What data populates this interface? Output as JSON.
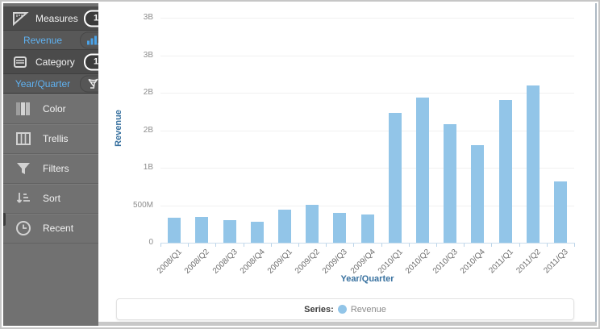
{
  "sidebar": {
    "measures": {
      "label": "Measures",
      "badge": "1",
      "icon": "set-square-ruler-icon"
    },
    "revenue_field": {
      "label": "Revenue",
      "icon": "bar-chart-icon"
    },
    "category": {
      "label": "Category",
      "badge": "1",
      "icon": "drawer-icon"
    },
    "year_quarter_field": {
      "label": "Year/Quarter",
      "icon": "funnel-swirl-icon"
    },
    "menu_items": [
      {
        "label": "Color",
        "icon": "color-swatches-icon"
      },
      {
        "label": "Trellis",
        "icon": "trellis-grid-icon"
      },
      {
        "label": "Filters",
        "icon": "funnel-icon"
      },
      {
        "label": "Sort",
        "icon": "sort-descending-icon"
      },
      {
        "label": "Recent",
        "icon": "clock-icon"
      }
    ],
    "accent_color": "#5fb2f2"
  },
  "chart_data": {
    "type": "bar",
    "title": "",
    "xlabel": "Year/Quarter",
    "ylabel": "Revenue",
    "categories": [
      "2008/Q1",
      "2008/Q2",
      "2008/Q3",
      "2008/Q4",
      "2009/Q1",
      "2009/Q2",
      "2009/Q3",
      "2009/Q4",
      "2010/Q1",
      "2010/Q2",
      "2010/Q3",
      "2010/Q4",
      "2011/Q1",
      "2011/Q2",
      "2011/Q3"
    ],
    "series": [
      {
        "name": "Revenue",
        "values_millions": [
          330,
          345,
          300,
          280,
          440,
          505,
          400,
          375,
          1730,
          1935,
          1585,
          1305,
          1900,
          2095,
          815
        ]
      }
    ],
    "ylim_millions": [
      0,
      3000
    ],
    "yticks": [
      {
        "value": 0,
        "label": "0"
      },
      {
        "value": 500,
        "label": "500M"
      },
      {
        "value": 1000,
        "label": "1B"
      },
      {
        "value": 1500,
        "label": "2B"
      },
      {
        "value": 2000,
        "label": "2B"
      },
      {
        "value": 2500,
        "label": "3B"
      },
      {
        "value": 3000,
        "label": "3B"
      }
    ],
    "grid": true,
    "bar_color": "#92c5e8",
    "legend": {
      "position": "bottom",
      "prefix": "Series:",
      "entries": [
        {
          "label": "Revenue",
          "color": "#92c5e8"
        }
      ]
    }
  }
}
